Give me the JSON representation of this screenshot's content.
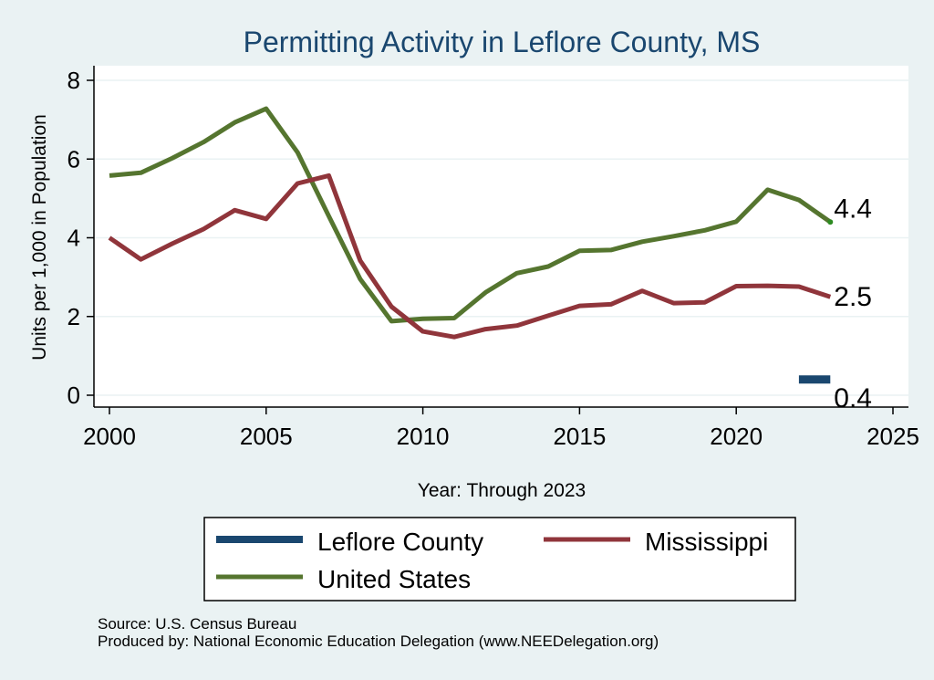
{
  "chart_data": {
    "type": "line",
    "title": "Permitting Activity in Leflore County, MS",
    "xlabel": "Year: Through 2023",
    "ylabel": "Units per 1,000 in Population",
    "xlim": [
      2000,
      2025
    ],
    "ylim": [
      0,
      8
    ],
    "xticks": [
      "2000",
      "2005",
      "2010",
      "2015",
      "2020",
      "2025"
    ],
    "yticks": [
      "0",
      "2",
      "4",
      "6",
      "8"
    ],
    "grid": true,
    "legend_position": "bottom",
    "series": [
      {
        "name": "Leflore County",
        "color": "#1a476f",
        "x": [
          2022,
          2023
        ],
        "values": [
          0.4,
          0.4
        ],
        "end_label": "0.4"
      },
      {
        "name": "Mississippi",
        "color": "#90353b",
        "x": [
          2000,
          2001,
          2002,
          2003,
          2004,
          2005,
          2006,
          2007,
          2008,
          2009,
          2010,
          2011,
          2012,
          2013,
          2014,
          2015,
          2016,
          2017,
          2018,
          2019,
          2020,
          2021,
          2022,
          2023
        ],
        "values": [
          4.0,
          3.45,
          3.85,
          4.22,
          4.7,
          4.48,
          5.38,
          5.58,
          3.42,
          2.25,
          1.62,
          1.48,
          1.68,
          1.77,
          2.02,
          2.27,
          2.31,
          2.65,
          2.34,
          2.36,
          2.77,
          2.78,
          2.76,
          2.5
        ],
        "end_label": "2.5"
      },
      {
        "name": "United States",
        "color": "#55752f",
        "x": [
          2000,
          2001,
          2002,
          2003,
          2004,
          2005,
          2006,
          2007,
          2008,
          2009,
          2010,
          2011,
          2012,
          2013,
          2014,
          2015,
          2016,
          2017,
          2018,
          2019,
          2020,
          2021,
          2022,
          2023
        ],
        "values": [
          5.58,
          5.65,
          6.02,
          6.43,
          6.93,
          7.28,
          6.17,
          4.55,
          2.95,
          1.88,
          1.94,
          1.96,
          2.61,
          3.1,
          3.27,
          3.67,
          3.69,
          3.9,
          4.04,
          4.19,
          4.41,
          5.22,
          4.96,
          4.4
        ],
        "end_label": "4.4"
      }
    ],
    "legend_order": [
      "Leflore County",
      "Mississippi",
      "United States"
    ]
  },
  "footer": {
    "source": "Source: U.S. Census Bureau",
    "produced_by": "Produced by: National Economic Education Delegation (www.NEEDelegation.org)"
  },
  "colors": {
    "background": "#eaf2f3",
    "plot_background": "#ffffff",
    "title": "#1a476f",
    "grid": "#eaf2f3"
  }
}
